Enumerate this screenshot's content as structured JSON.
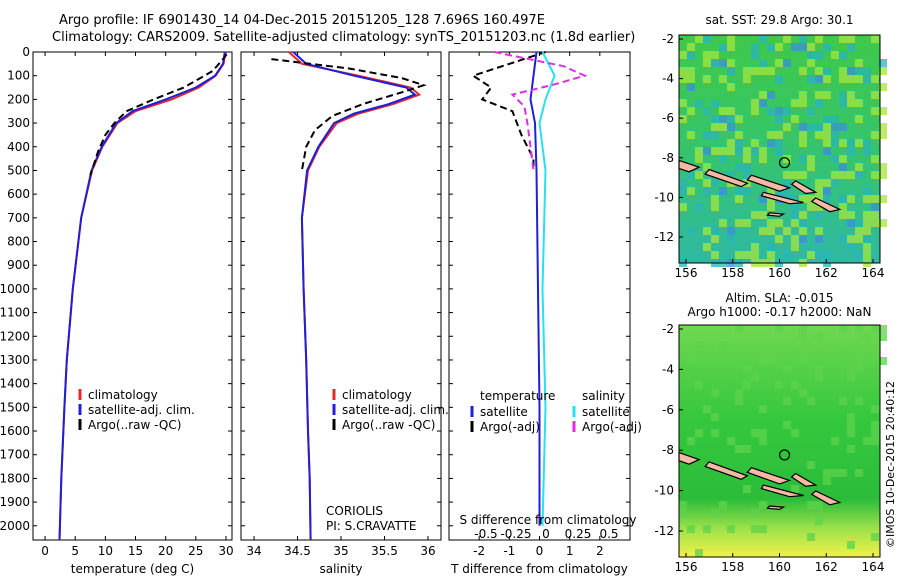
{
  "header": {
    "line1": "Argo profile: IF 6901430_14 04-Dec-2015 20151205_128 7.696S 160.497E",
    "line2": "Climatology: CARS2009. Satellite-adjusted climatology: synTS_20151203.nc (1.8d earlier)"
  },
  "colors": {
    "climatology": "#e8262b",
    "satellite_adj": "#1f1fd6",
    "argo": "#000000",
    "sal_satellite": "#28e0ef",
    "sal_argo": "#e02ce6",
    "coast_fill": "#f3b9a4"
  },
  "depth_axis": {
    "ticks": [
      0,
      100,
      200,
      300,
      400,
      500,
      600,
      700,
      800,
      900,
      1000,
      1100,
      1200,
      1300,
      1400,
      1500,
      1600,
      1700,
      1800,
      1900,
      2000
    ],
    "ylim": [
      0,
      2060
    ],
    "direction": "down"
  },
  "panels": {
    "temperature": {
      "xlabel": "temperature (deg C)",
      "xticks": [
        0,
        5,
        10,
        15,
        20,
        25,
        30
      ],
      "xlim": [
        -2,
        31
      ],
      "legend": [
        "climatology",
        "satellite-adj. clim.",
        "Argo(..raw -QC)"
      ]
    },
    "salinity": {
      "xlabel": "salinity",
      "xticks": [
        "34",
        "34.5",
        "35",
        "35.5",
        "36"
      ],
      "xlim": [
        33.85,
        36.15
      ],
      "legend": [
        "climatology",
        "satellite-adj. clim.",
        "Argo(..raw -QC)"
      ],
      "notes": [
        "CORIOLIS",
        "PI: S.CRAVATTE"
      ]
    },
    "difference": {
      "xlabel": "T difference from climatology",
      "xticks": [
        "-2",
        "-1",
        "0",
        "1",
        "2"
      ],
      "xlim": [
        -3,
        3
      ],
      "top_label": "S difference from climatology",
      "top_ticks": [
        "-0.5",
        "-0.25",
        "0",
        "0.25",
        "0.5"
      ],
      "legend_temp_head": "temperature",
      "legend_sal_head": "salinity",
      "legend_temp": [
        "satellite",
        "Argo(-adj)"
      ],
      "legend_sal": [
        "satellite",
        "Argo(-adj)"
      ]
    }
  },
  "maps": {
    "sst": {
      "title": "sat. SST: 29.8  Argo: 30.1",
      "xticks": [
        "156",
        "158",
        "160",
        "162",
        "164"
      ],
      "yticks": [
        "-2",
        "-4",
        "-6",
        "-8",
        "-10",
        "-12"
      ]
    },
    "sla": {
      "title1": "Altim. SLA: -0.015",
      "title2": "Argo h1000: -0.17  h2000: NaN",
      "xticks": [
        "156",
        "158",
        "160",
        "162",
        "164"
      ],
      "yticks": [
        "-2",
        "-4",
        "-6",
        "-8",
        "-10",
        "-12"
      ]
    }
  },
  "side_text": "©IMOS 10-Dec-2015 20:40:12",
  "chart_data": [
    {
      "type": "line",
      "xlabel": "temperature (deg C)",
      "ylabel": "",
      "xlim": [
        -2,
        31
      ],
      "ylim": [
        0,
        2060
      ],
      "series": [
        {
          "name": "climatology",
          "depth": [
            0,
            50,
            100,
            150,
            200,
            250,
            300,
            400,
            500,
            700,
            1000,
            1300,
            1500,
            1800,
            2060
          ],
          "values": [
            29.9,
            29.6,
            28.3,
            25.5,
            21,
            15,
            12,
            9.5,
            7.8,
            6,
            4.6,
            3.6,
            3.2,
            2.7,
            2.4
          ]
        },
        {
          "name": "satellite-adj. clim.",
          "depth": [
            0,
            50,
            100,
            150,
            200,
            250,
            300,
            400,
            500,
            700,
            1000,
            1300,
            1500,
            1800,
            2060
          ],
          "values": [
            29.8,
            29.5,
            28.2,
            25,
            20,
            14.5,
            11.8,
            9.4,
            7.7,
            6,
            4.6,
            3.6,
            3.2,
            2.7,
            2.4
          ]
        },
        {
          "name": "Argo(..raw -QC)",
          "depth": [
            10,
            30,
            80,
            150,
            200,
            250,
            300,
            350,
            420,
            520
          ],
          "values": [
            30.1,
            29.5,
            27.8,
            23,
            18,
            13.5,
            11.5,
            10,
            8.8,
            7.5
          ]
        }
      ]
    },
    {
      "type": "line",
      "xlabel": "salinity",
      "ylabel": "",
      "xlim": [
        33.85,
        36.15
      ],
      "ylim": [
        0,
        2060
      ],
      "series": [
        {
          "name": "climatology",
          "depth": [
            0,
            50,
            100,
            150,
            180,
            220,
            260,
            300,
            400,
            500,
            700,
            1000,
            1300,
            1600,
            1800,
            2060
          ],
          "values": [
            34.4,
            34.55,
            35.2,
            35.8,
            35.9,
            35.6,
            35.2,
            34.95,
            34.75,
            34.62,
            34.55,
            34.57,
            34.6,
            34.62,
            34.64,
            34.65
          ]
        },
        {
          "name": "satellite-adj. clim.",
          "depth": [
            0,
            50,
            100,
            150,
            180,
            220,
            260,
            300,
            400,
            500,
            700,
            1000,
            1300,
            1600,
            1800,
            2060
          ],
          "values": [
            34.45,
            34.6,
            35.15,
            35.75,
            35.85,
            35.55,
            35.15,
            34.92,
            34.74,
            34.61,
            34.55,
            34.57,
            34.6,
            34.62,
            34.64,
            34.65
          ]
        },
        {
          "name": "Argo(..raw -QC)",
          "depth": [
            30,
            70,
            110,
            140,
            170,
            220,
            270,
            330,
            400,
            500
          ],
          "values": [
            34.2,
            35.1,
            35.7,
            35.95,
            35.7,
            35.25,
            34.9,
            34.7,
            34.6,
            34.55
          ]
        }
      ]
    },
    {
      "type": "line",
      "xlabel": "T difference from climatology",
      "ylabel": "",
      "xlim": [
        -3,
        3
      ],
      "ylim": [
        0,
        2060
      ],
      "series": [
        {
          "name": "temperature satellite",
          "depth": [
            0,
            100,
            200,
            300,
            500,
            1000,
            1500,
            2000
          ],
          "values": [
            -0.1,
            -0.2,
            -0.3,
            -0.15,
            -0.1,
            -0.05,
            0,
            0
          ]
        },
        {
          "name": "temperature Argo(-adj)",
          "depth": [
            0,
            100,
            150,
            200,
            250,
            350,
            450,
            500
          ],
          "values": [
            0.2,
            -2.2,
            -1.6,
            -1.9,
            -0.9,
            -0.6,
            -0.2,
            -0.2
          ]
        },
        {
          "name": "salinity satellite",
          "depth": [
            0,
            100,
            200,
            300,
            500,
            1000,
            1500,
            2000
          ],
          "values": [
            0.1,
            0.5,
            0.2,
            0,
            0.2,
            0.1,
            0.2,
            0.1
          ]
        },
        {
          "name": "salinity Argo(-adj)",
          "depth": [
            0,
            60,
            100,
            140,
            180,
            230,
            300,
            400,
            500
          ],
          "values": [
            -1.5,
            0.8,
            1.5,
            0.4,
            -0.9,
            -0.5,
            -0.4,
            -0.3,
            -0.2
          ]
        }
      ]
    }
  ]
}
